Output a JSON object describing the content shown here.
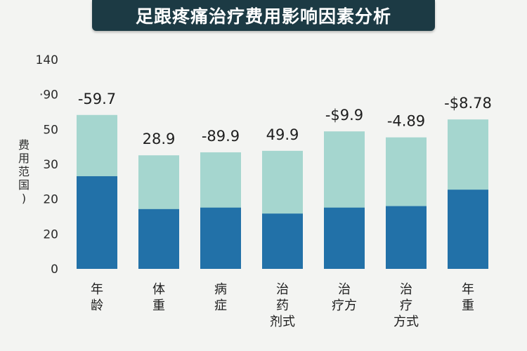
{
  "title": "足跟疼痛治疗费用影响因素分析",
  "colors": {
    "bar_top": "#a5d6cf",
    "bar_bottom": "#2271a8",
    "title_bg": "#1c3a44"
  },
  "chart_data": {
    "type": "bar",
    "stacked": true,
    "title": "足跟疼痛治疗费用影响因素分析",
    "ylabel": "费用范国)",
    "ytick_labels": [
      "0",
      "20",
      "20",
      "30",
      "50",
      "·90",
      "140"
    ],
    "categories": [
      "年龄",
      "体重",
      "病症",
      "治药剂式",
      "治疗方",
      "治疗方式",
      "年重"
    ],
    "category_lines": [
      [
        "年",
        "龄"
      ],
      [
        "体",
        "重"
      ],
      [
        "病",
        "症"
      ],
      [
        "治",
        "药",
        "剂式"
      ],
      [
        "治",
        "疗方"
      ],
      [
        "治",
        "疗",
        "方式"
      ],
      [
        "年",
        "重"
      ]
    ],
    "data_labels": [
      "-59.7",
      "28.9",
      "-89.9",
      "49.9",
      "-$9.9",
      "-4.89",
      "-$8.78"
    ],
    "series": [
      {
        "values": [
          62,
          40,
          41,
          37,
          41,
          42,
          53
        ]
      },
      {
        "values": [
          41,
          36,
          37,
          42,
          51,
          46,
          47
        ]
      }
    ],
    "ylim": [
      0,
      140
    ],
    "grid": false,
    "legend": "none"
  }
}
